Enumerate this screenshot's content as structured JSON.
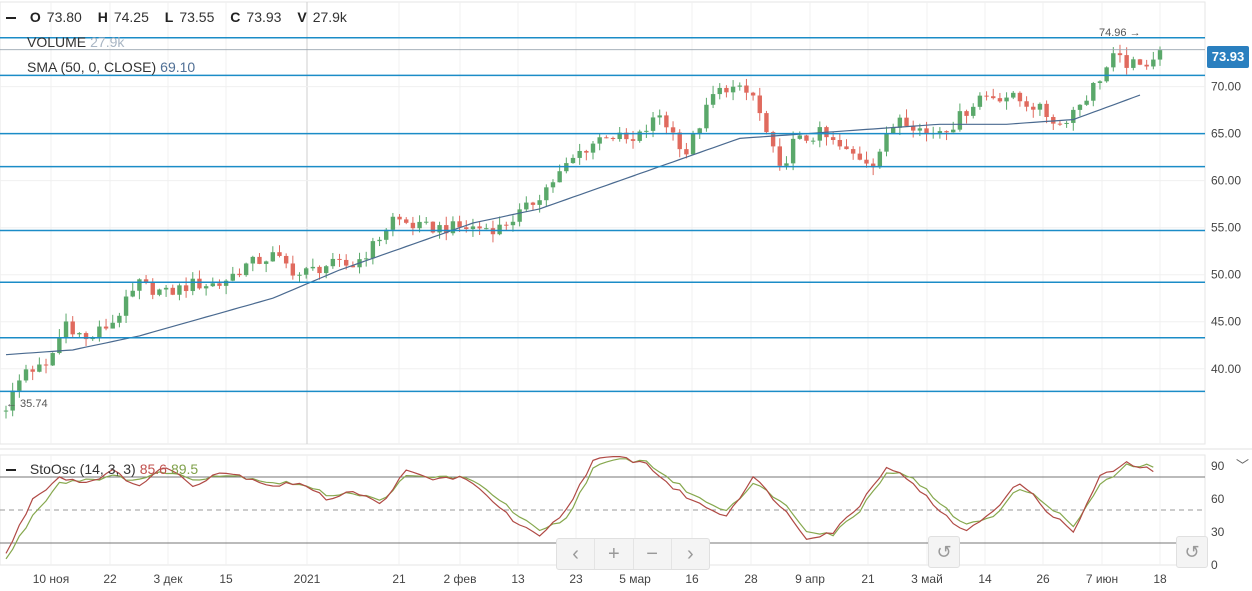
{
  "ohlc": {
    "o_label": "O",
    "o": "73.80",
    "h_label": "H",
    "h": "74.25",
    "l_label": "L",
    "l": "73.55",
    "c_label": "C",
    "c": "73.93",
    "v_label": "V",
    "v": "27.9k"
  },
  "volume_legend": {
    "name": "VOLUME",
    "value": "27.9k"
  },
  "sma_legend": {
    "name": "SMA (50, 0, CLOSE)",
    "value": "69.10"
  },
  "sto_legend": {
    "name": "StoOsc (14, 3, 3)",
    "k": "85.6",
    "d": "89.5"
  },
  "last_price": "73.93",
  "annotations": {
    "high": "74.96",
    "low": "35.74"
  },
  "navigator": {
    "back": "‹",
    "zoom_in": "+",
    "zoom_out": "−",
    "forward": "›",
    "reset": "↺"
  },
  "colors": {
    "up": "#5aa86a",
    "down": "#e06a5e",
    "sma": "#4a6a90",
    "hline": "#1b8cc7",
    "k_line": "#b04a45",
    "d_line": "#86a84e",
    "accent": "#2a7fbf"
  },
  "chart_data": [
    {
      "type": "candlestick",
      "title": "",
      "ylim": [
        32,
        79
      ],
      "y_ticks": [
        40,
        45,
        50,
        55,
        60,
        65,
        70
      ],
      "y_tick_labels": [
        "40.00",
        "45.00",
        "50.00",
        "55.00",
        "60.00",
        "65.00",
        "70.00"
      ],
      "x_tick_labels": [
        "10 ноя",
        "22",
        "3 дек",
        "15",
        "2021",
        "21",
        "2 фев",
        "13",
        "23",
        "5 мар",
        "16",
        "28",
        "9 апр",
        "21",
        "3 май",
        "14",
        "26",
        "7 июн",
        "18"
      ],
      "horizontal_lines": [
        37.6,
        43.3,
        49.2,
        54.7,
        61.5,
        65.0,
        71.2,
        75.2
      ],
      "close_anchors": [
        [
          0,
          36
        ],
        [
          3,
          40
        ],
        [
          6,
          40
        ],
        [
          9,
          45
        ],
        [
          12,
          43
        ],
        [
          16,
          45
        ],
        [
          20,
          49
        ],
        [
          24,
          48
        ],
        [
          28,
          49
        ],
        [
          32,
          49
        ],
        [
          36,
          51
        ],
        [
          40,
          52
        ],
        [
          44,
          50
        ],
        [
          48,
          51
        ],
        [
          52,
          51
        ],
        [
          55,
          53
        ],
        [
          58,
          56
        ],
        [
          62,
          55
        ],
        [
          66,
          55
        ],
        [
          70,
          55
        ],
        [
          74,
          55
        ],
        [
          78,
          57
        ],
        [
          82,
          60
        ],
        [
          86,
          63
        ],
        [
          90,
          65
        ],
        [
          94,
          64
        ],
        [
          98,
          67
        ],
        [
          102,
          63
        ],
        [
          106,
          69
        ],
        [
          108,
          70
        ],
        [
          112,
          69
        ],
        [
          116,
          61
        ],
        [
          118,
          64
        ],
        [
          122,
          65
        ],
        [
          126,
          63
        ],
        [
          130,
          62
        ],
        [
          134,
          67
        ],
        [
          138,
          65
        ],
        [
          142,
          66
        ],
        [
          146,
          69
        ],
        [
          150,
          69
        ],
        [
          154,
          68
        ],
        [
          158,
          66
        ],
        [
          162,
          69
        ],
        [
          166,
          73
        ],
        [
          170,
          72
        ],
        [
          173,
          74
        ]
      ],
      "sma_anchors": [
        [
          0,
          41.5
        ],
        [
          10,
          42
        ],
        [
          20,
          43.5
        ],
        [
          30,
          45.5
        ],
        [
          40,
          47.5
        ],
        [
          50,
          50.5
        ],
        [
          60,
          53
        ],
        [
          70,
          55.5
        ],
        [
          80,
          57
        ],
        [
          90,
          59.5
        ],
        [
          100,
          62
        ],
        [
          110,
          64.5
        ],
        [
          120,
          65
        ],
        [
          130,
          65.5
        ],
        [
          140,
          66
        ],
        [
          150,
          66
        ],
        [
          160,
          66.5
        ],
        [
          170,
          69.1
        ]
      ],
      "n_candles": 174
    },
    {
      "type": "line",
      "title": "",
      "ylim": [
        0,
        100
      ],
      "y_ticks": [
        0,
        30,
        60,
        90
      ],
      "y_tick_labels": [
        "0",
        "30",
        "60",
        "90"
      ],
      "reference_lines": {
        "upper": 80,
        "middle": 50,
        "lower": 20
      },
      "k_anchors": [
        [
          0,
          10
        ],
        [
          4,
          60
        ],
        [
          8,
          80
        ],
        [
          12,
          75
        ],
        [
          16,
          85
        ],
        [
          20,
          72
        ],
        [
          24,
          90
        ],
        [
          28,
          72
        ],
        [
          32,
          85
        ],
        [
          36,
          80
        ],
        [
          40,
          72
        ],
        [
          44,
          75
        ],
        [
          48,
          60
        ],
        [
          52,
          68
        ],
        [
          56,
          55
        ],
        [
          60,
          85
        ],
        [
          64,
          78
        ],
        [
          68,
          80
        ],
        [
          72,
          65
        ],
        [
          76,
          40
        ],
        [
          80,
          25
        ],
        [
          84,
          50
        ],
        [
          88,
          95
        ],
        [
          92,
          98
        ],
        [
          96,
          92
        ],
        [
          100,
          70
        ],
        [
          104,
          55
        ],
        [
          108,
          45
        ],
        [
          112,
          80
        ],
        [
          116,
          55
        ],
        [
          120,
          25
        ],
        [
          124,
          30
        ],
        [
          128,
          55
        ],
        [
          132,
          90
        ],
        [
          136,
          75
        ],
        [
          140,
          48
        ],
        [
          144,
          30
        ],
        [
          148,
          50
        ],
        [
          152,
          75
        ],
        [
          156,
          50
        ],
        [
          160,
          30
        ],
        [
          164,
          80
        ],
        [
          168,
          92
        ],
        [
          172,
          86
        ]
      ],
      "d_anchors": [
        [
          0,
          5
        ],
        [
          4,
          45
        ],
        [
          8,
          75
        ],
        [
          12,
          78
        ],
        [
          16,
          80
        ],
        [
          20,
          78
        ],
        [
          24,
          85
        ],
        [
          28,
          78
        ],
        [
          32,
          82
        ],
        [
          36,
          80
        ],
        [
          40,
          75
        ],
        [
          44,
          74
        ],
        [
          48,
          64
        ],
        [
          52,
          66
        ],
        [
          56,
          58
        ],
        [
          60,
          80
        ],
        [
          64,
          80
        ],
        [
          68,
          80
        ],
        [
          72,
          70
        ],
        [
          76,
          48
        ],
        [
          80,
          30
        ],
        [
          84,
          42
        ],
        [
          88,
          88
        ],
        [
          92,
          96
        ],
        [
          96,
          94
        ],
        [
          100,
          76
        ],
        [
          104,
          60
        ],
        [
          108,
          50
        ],
        [
          112,
          74
        ],
        [
          116,
          60
        ],
        [
          120,
          32
        ],
        [
          124,
          28
        ],
        [
          128,
          50
        ],
        [
          132,
          85
        ],
        [
          136,
          80
        ],
        [
          140,
          55
        ],
        [
          144,
          36
        ],
        [
          148,
          45
        ],
        [
          152,
          70
        ],
        [
          156,
          56
        ],
        [
          160,
          35
        ],
        [
          164,
          72
        ],
        [
          168,
          90
        ],
        [
          172,
          90
        ]
      ]
    }
  ]
}
